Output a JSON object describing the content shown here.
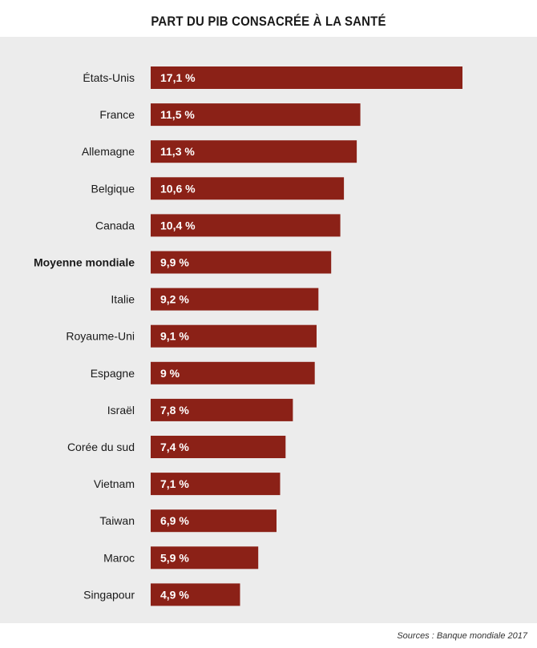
{
  "title": "PART DU PIB CONSACRÉE À LA SANTÉ",
  "source": "Sources : Banque mondiale 2017",
  "colors": {
    "bar": "#8b2117",
    "bar_label": "#ffffff",
    "panel_background": "#ececec",
    "category_text": "#1a1a1a"
  },
  "chart_data": {
    "type": "bar",
    "orientation": "horizontal",
    "title": "PART DU PIB CONSACRÉE À LA SANTÉ",
    "xlabel": "",
    "ylabel": "",
    "unit": "%",
    "categories": [
      "États-Unis",
      "France",
      "Allemagne",
      "Belgique",
      "Canada",
      "Moyenne mondiale",
      "Italie",
      "Royaume-Uni",
      "Espagne",
      "Israël",
      "Corée du sud",
      "Vietnam",
      "Taiwan",
      "Maroc",
      "Singapour"
    ],
    "values": [
      17.1,
      11.5,
      11.3,
      10.6,
      10.4,
      9.9,
      9.2,
      9.1,
      9,
      7.8,
      7.4,
      7.1,
      6.9,
      5.9,
      4.9
    ],
    "labels": [
      "17,1 %",
      "11,5 %",
      "11,3 %",
      "10,6 %",
      "10,4 %",
      "9,9 %",
      "9,2 %",
      "9,1 %",
      "9 %",
      "7,8 %",
      "7,4 %",
      "7,1 %",
      "6,9 %",
      "5,9 %",
      "4,9 %"
    ],
    "highlighted_category": "Moyenne mondiale",
    "xlim": [
      0,
      17.1
    ],
    "grid": false,
    "legend": "none"
  }
}
